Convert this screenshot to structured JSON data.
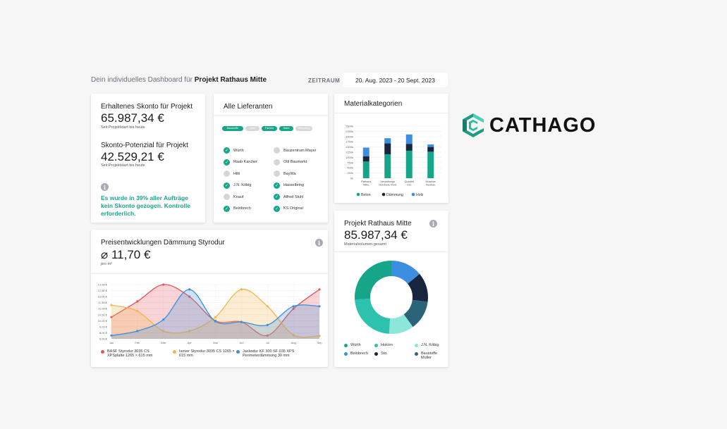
{
  "header": {
    "title_prefix": "Dein individuelles Dashboard für",
    "project": "Projekt Rathaus Mitte",
    "zeitraum_label": "ZEITRAUM",
    "date_range": "20. Aug. 2023 - 20 Sept. 2023"
  },
  "skonto": {
    "received_title": "Erhaltenes Skonto für Projekt",
    "received_value": "65.987,34 €",
    "received_sub": "Seit Projektstart bis heute",
    "potential_title": "Skonto-Potenzial für Projekt",
    "potential_value": "42.529,21 €",
    "potential_sub": "Seit Projektstart bis heute",
    "notice": "Es wurde in 39% aller Aufträge kein Skonto gezogen. Kontrolle erforderlich."
  },
  "suppliers": {
    "title": "Alle Lieferanten",
    "filters": [
      {
        "label": "Baustoffe",
        "active": true
      },
      {
        "label": "Holz",
        "active": false
      },
      {
        "label": "Farben",
        "active": true
      },
      {
        "label": "Stahl",
        "active": true
      },
      {
        "label": "Werkzeug",
        "active": false
      }
    ],
    "left": [
      {
        "name": "Würth",
        "checked": true
      },
      {
        "name": "Raab Karcher",
        "checked": true
      },
      {
        "name": "Hilti",
        "checked": false
      },
      {
        "name": "J.N. Köbig",
        "checked": true
      },
      {
        "name": "Knauf",
        "checked": false
      },
      {
        "name": "Beinbrech",
        "checked": true
      }
    ],
    "right": [
      {
        "name": "Bauzentrum Mayer",
        "checked": false
      },
      {
        "name": "Otil Baumarkt",
        "checked": false
      },
      {
        "name": "BayWa",
        "checked": false
      },
      {
        "name": "Hasselbring",
        "checked": true
      },
      {
        "name": "Alfred Stuhl",
        "checked": true
      },
      {
        "name": "KS Original",
        "checked": true
      }
    ]
  },
  "materials": {
    "title": "Materialkategorien"
  },
  "price": {
    "title": "Preisentwicklungen Dämmung Styrodur",
    "value": "⌀ 11,70 €",
    "unit": "pro m²"
  },
  "project": {
    "title": "Projekt Rathaus Mitte",
    "value": "85.987,34 €",
    "sub": "Materialvolumen gesamt"
  },
  "logo": {
    "text": "CATHAGO",
    "icon": "cathago-logo-icon",
    "color": "#27a98f"
  },
  "chart_data": [
    {
      "type": "bar",
      "stacked": true,
      "categories": [
        "Rathaus Mitte",
        "Verwaltungs Gebäude Nord",
        "Quartier 011",
        "Museum Neubau"
      ],
      "category_lines": [
        [
          "Rathaus",
          "Mitte"
        ],
        [
          "Verwaltungs",
          "Gebäude Nord"
        ],
        [
          "Quartier",
          "011"
        ],
        [
          "Museum",
          "Neubau"
        ]
      ],
      "series": [
        {
          "name": "Beton",
          "color": "#17a589",
          "values": [
            800,
            1150,
            1320,
            1270
          ]
        },
        {
          "name": "Dämmung",
          "color": "#17253f",
          "values": [
            250,
            520,
            330,
            230
          ]
        },
        {
          "name": "Holz",
          "color": "#3b8ee0",
          "values": [
            420,
            250,
            450,
            120
          ]
        }
      ],
      "y_ticks": [
        "0k",
        "250k",
        "500k",
        "750k",
        "1000k",
        "1250k",
        "1500k",
        "1750k",
        "2000k",
        "2250k",
        "2500k"
      ],
      "ylim": [
        0,
        2500
      ],
      "grid": true,
      "legend": "bottom"
    },
    {
      "type": "area",
      "x": [
        "Jan",
        "Feb",
        "Mär",
        "Apr",
        "Mai",
        "Jun",
        "Jul",
        "Aug",
        "Sep"
      ],
      "y_ticks": [
        "6,00 €",
        "8,00 €",
        "9,00 €",
        "10,00 €",
        "10,50 €",
        "11,00 €",
        "11,50 €",
        "12,00 €",
        "12,50 €",
        "13,00 €"
      ],
      "ylim": [
        6,
        13
      ],
      "series": [
        {
          "name": "BASF Styrodur 3035 CS XPSplatte 1265 × 615 mm",
          "color": "#e5545d",
          "values": [
            10.3,
            11.6,
            13.0,
            12.0,
            10.0,
            9.8,
            7.1,
            11.0,
            12.6
          ]
        },
        {
          "name": "Isover Styrodur 3035 CS 1265 × 615 mm",
          "color": "#f4b549",
          "values": [
            11.3,
            10.8,
            8.3,
            8.3,
            10.3,
            12.6,
            11.2,
            7.3,
            7.0
          ]
        },
        {
          "name": "Jackodur KF 300 SF 035 XPS Perimeterdämmung 30 mm",
          "color": "#3b8ee0",
          "values": [
            7.1,
            8.3,
            10.1,
            12.6,
            9.9,
            9.8,
            9.3,
            11.2,
            11.2
          ]
        }
      ],
      "grid": true,
      "legend": "bottom"
    },
    {
      "type": "pie",
      "donut": true,
      "slices": [
        {
          "label": "Würth",
          "color": "#17a589",
          "value": 26
        },
        {
          "label": "Holcim",
          "color": "#2cc2ad",
          "value": 23
        },
        {
          "label": "J.N. Köbig",
          "color": "#8de6da",
          "value": 11
        },
        {
          "label": "Sto",
          "color": "#17253f",
          "value": 13
        },
        {
          "label": "Baustoffe Müller",
          "color": "#2b6478",
          "value": 13
        },
        {
          "label": "Beinbrech",
          "color": "#3b8ee0",
          "value": 14
        }
      ],
      "order": [
        "Würth",
        "Holcim",
        "J.N. Köbig",
        "Beinbrech",
        "Sto",
        "Baustoffe Müller"
      ],
      "legend": "bottom"
    }
  ]
}
